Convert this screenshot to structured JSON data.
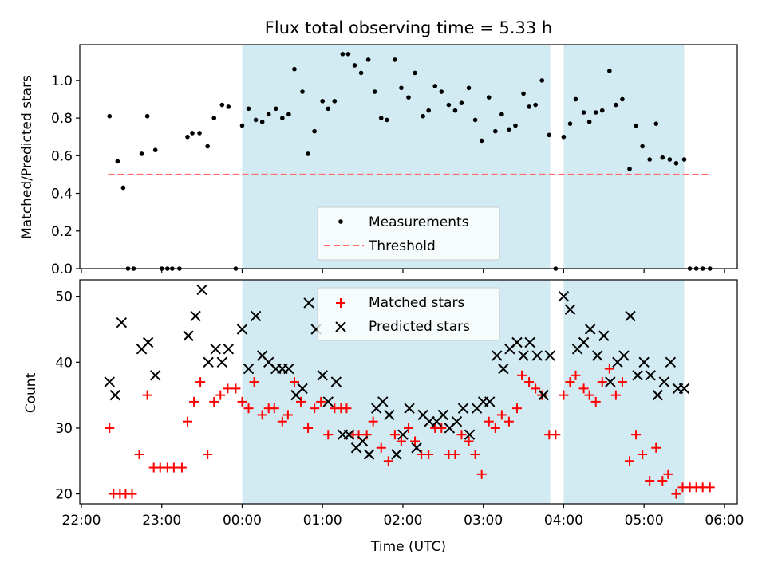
{
  "figure": {
    "title": "Flux total observing time = 5.33 h",
    "xlabel": "Time (UTC)",
    "x_ticks": [
      "22:00",
      "23:00",
      "00:00",
      "01:00",
      "02:00",
      "03:00",
      "04:00",
      "05:00",
      "06:00"
    ]
  },
  "colors": {
    "shade": "#add8e6",
    "measurement": "#000000",
    "threshold": "#ff6b6b",
    "matched": "#ff0000",
    "predicted": "#000000"
  },
  "chart_data": [
    {
      "type": "scatter",
      "ylabel": "Matched/Predicted stars",
      "ylim": [
        0,
        1.19
      ],
      "y_ticks": [
        "0.0",
        "0.2",
        "0.4",
        "0.6",
        "0.8",
        "1.0"
      ],
      "xlim_hours": [
        21.98,
        30.16
      ],
      "shaded_intervals": [
        [
          "00:00",
          "03:50"
        ],
        [
          "04:00",
          "05:30"
        ]
      ],
      "threshold": {
        "name": "Threshold",
        "value": 0.5,
        "x_range": [
          "22:20",
          "05:50"
        ]
      },
      "legend": {
        "placement": "lower center",
        "entries": [
          "Measurements",
          "Threshold"
        ]
      },
      "series": [
        {
          "name": "Measurements",
          "marker": "dot",
          "points": [
            [
              22.35,
              0.81
            ],
            [
              22.45,
              0.57
            ],
            [
              22.52,
              0.43
            ],
            [
              22.58,
              0
            ],
            [
              22.65,
              0
            ],
            [
              22.75,
              0.61
            ],
            [
              22.82,
              0.81
            ],
            [
              22.92,
              0.63
            ],
            [
              23.0,
              0
            ],
            [
              23.07,
              0
            ],
            [
              23.13,
              0
            ],
            [
              23.22,
              0
            ],
            [
              23.32,
              0.7
            ],
            [
              23.38,
              0.72
            ],
            [
              23.47,
              0.72
            ],
            [
              23.57,
              0.65
            ],
            [
              23.65,
              0.8
            ],
            [
              23.75,
              0.87
            ],
            [
              23.83,
              0.86
            ],
            [
              23.92,
              0
            ],
            [
              24.0,
              0.76
            ],
            [
              24.08,
              0.85
            ],
            [
              24.17,
              0.79
            ],
            [
              24.25,
              0.78
            ],
            [
              24.33,
              0.82
            ],
            [
              24.42,
              0.85
            ],
            [
              24.5,
              0.8
            ],
            [
              24.58,
              0.82
            ],
            [
              24.65,
              1.06
            ],
            [
              24.75,
              0.94
            ],
            [
              24.82,
              0.61
            ],
            [
              24.9,
              0.73
            ],
            [
              25.0,
              0.89
            ],
            [
              25.07,
              0.85
            ],
            [
              25.15,
              0.89
            ],
            [
              25.25,
              1.14
            ],
            [
              25.32,
              1.14
            ],
            [
              25.4,
              1.08
            ],
            [
              25.48,
              1.04
            ],
            [
              25.57,
              1.11
            ],
            [
              25.65,
              0.94
            ],
            [
              25.73,
              0.8
            ],
            [
              25.8,
              0.79
            ],
            [
              25.9,
              1.11
            ],
            [
              25.98,
              0.96
            ],
            [
              26.07,
              0.91
            ],
            [
              26.15,
              1.04
            ],
            [
              26.25,
              0.81
            ],
            [
              26.32,
              0.84
            ],
            [
              26.4,
              0.97
            ],
            [
              26.48,
              0.94
            ],
            [
              26.57,
              0.87
            ],
            [
              26.65,
              0.84
            ],
            [
              26.73,
              0.88
            ],
            [
              26.82,
              0.96
            ],
            [
              26.9,
              0.79
            ],
            [
              26.98,
              0.68
            ],
            [
              27.07,
              0.91
            ],
            [
              27.15,
              0.73
            ],
            [
              27.23,
              0.82
            ],
            [
              27.32,
              0.74
            ],
            [
              27.4,
              0.76
            ],
            [
              27.5,
              0.93
            ],
            [
              27.57,
              0.86
            ],
            [
              27.65,
              0.87
            ],
            [
              27.73,
              1.0
            ],
            [
              27.82,
              0.71
            ],
            [
              27.9,
              0
            ],
            [
              28.0,
              0.7
            ],
            [
              28.08,
              0.77
            ],
            [
              28.15,
              0.9
            ],
            [
              28.25,
              0.83
            ],
            [
              28.32,
              0.78
            ],
            [
              28.4,
              0.83
            ],
            [
              28.48,
              0.84
            ],
            [
              28.57,
              1.05
            ],
            [
              28.65,
              0.87
            ],
            [
              28.73,
              0.9
            ],
            [
              28.82,
              0.53
            ],
            [
              28.9,
              0.76
            ],
            [
              28.98,
              0.65
            ],
            [
              29.07,
              0.58
            ],
            [
              29.15,
              0.77
            ],
            [
              29.23,
              0.59
            ],
            [
              29.32,
              0.58
            ],
            [
              29.4,
              0.56
            ],
            [
              29.5,
              0.58
            ],
            [
              29.57,
              0
            ],
            [
              29.65,
              0
            ],
            [
              29.73,
              0
            ],
            [
              29.82,
              0
            ]
          ]
        }
      ]
    },
    {
      "type": "scatter",
      "ylabel": "Count",
      "ylim": [
        18.5,
        52.5
      ],
      "y_ticks": [
        "20",
        "30",
        "40",
        "50"
      ],
      "xlim_hours": [
        21.98,
        30.16
      ],
      "shaded_intervals": [
        [
          "00:00",
          "03:50"
        ],
        [
          "04:00",
          "05:30"
        ]
      ],
      "legend": {
        "placement": "upper center",
        "entries": [
          "Matched stars",
          "Predicted stars"
        ]
      },
      "series": [
        {
          "name": "Matched stars",
          "marker": "plus",
          "points": [
            [
              22.35,
              30
            ],
            [
              22.4,
              20
            ],
            [
              22.48,
              20
            ],
            [
              22.55,
              20
            ],
            [
              22.63,
              20
            ],
            [
              22.72,
              26
            ],
            [
              22.82,
              35
            ],
            [
              22.9,
              24
            ],
            [
              22.98,
              24
            ],
            [
              23.07,
              24
            ],
            [
              23.15,
              24
            ],
            [
              23.25,
              24
            ],
            [
              23.32,
              31
            ],
            [
              23.4,
              34
            ],
            [
              23.48,
              37
            ],
            [
              23.57,
              26
            ],
            [
              23.65,
              34
            ],
            [
              23.73,
              35
            ],
            [
              23.82,
              36
            ],
            [
              23.92,
              36
            ],
            [
              24.0,
              34
            ],
            [
              24.08,
              33
            ],
            [
              24.15,
              37
            ],
            [
              24.25,
              32
            ],
            [
              24.33,
              33
            ],
            [
              24.4,
              33
            ],
            [
              24.5,
              31
            ],
            [
              24.57,
              32
            ],
            [
              24.65,
              37
            ],
            [
              24.73,
              34
            ],
            [
              24.82,
              30
            ],
            [
              24.9,
              33
            ],
            [
              24.98,
              34
            ],
            [
              25.07,
              29
            ],
            [
              25.15,
              33
            ],
            [
              25.23,
              33
            ],
            [
              25.3,
              33
            ],
            [
              25.38,
              29
            ],
            [
              25.45,
              29
            ],
            [
              25.55,
              29
            ],
            [
              25.63,
              31
            ],
            [
              25.73,
              27
            ],
            [
              25.82,
              25
            ],
            [
              25.9,
              29
            ],
            [
              25.98,
              28
            ],
            [
              26.07,
              30
            ],
            [
              26.15,
              28
            ],
            [
              26.23,
              26
            ],
            [
              26.32,
              26
            ],
            [
              26.4,
              30
            ],
            [
              26.48,
              30
            ],
            [
              26.57,
              26
            ],
            [
              26.65,
              26
            ],
            [
              26.73,
              29
            ],
            [
              26.82,
              28
            ],
            [
              26.9,
              26
            ],
            [
              26.98,
              23
            ],
            [
              27.07,
              31
            ],
            [
              27.15,
              30
            ],
            [
              27.23,
              32
            ],
            [
              27.32,
              31
            ],
            [
              27.42,
              33
            ],
            [
              27.48,
              38
            ],
            [
              27.57,
              37
            ],
            [
              27.65,
              36
            ],
            [
              27.73,
              35
            ],
            [
              27.82,
              29
            ],
            [
              27.9,
              29
            ],
            [
              28.0,
              35
            ],
            [
              28.08,
              37
            ],
            [
              28.15,
              38
            ],
            [
              28.25,
              36
            ],
            [
              28.32,
              35
            ],
            [
              28.4,
              34
            ],
            [
              28.48,
              37
            ],
            [
              28.57,
              39
            ],
            [
              28.65,
              35
            ],
            [
              28.73,
              37
            ],
            [
              28.82,
              25
            ],
            [
              28.9,
              29
            ],
            [
              28.98,
              26
            ],
            [
              29.07,
              22
            ],
            [
              29.15,
              27
            ],
            [
              29.23,
              22
            ],
            [
              29.3,
              23
            ],
            [
              29.4,
              20
            ],
            [
              29.48,
              21
            ],
            [
              29.57,
              21
            ],
            [
              29.65,
              21
            ],
            [
              29.73,
              21
            ],
            [
              29.82,
              21
            ]
          ]
        },
        {
          "name": "Predicted stars",
          "marker": "x",
          "points": [
            [
              22.35,
              37
            ],
            [
              22.42,
              35
            ],
            [
              22.5,
              46
            ],
            [
              22.75,
              42
            ],
            [
              22.83,
              43
            ],
            [
              22.92,
              38
            ],
            [
              23.33,
              44
            ],
            [
              23.42,
              47
            ],
            [
              23.5,
              51
            ],
            [
              23.58,
              40
            ],
            [
              23.67,
              42
            ],
            [
              23.75,
              40
            ],
            [
              23.83,
              42
            ],
            [
              24.0,
              45
            ],
            [
              24.08,
              39
            ],
            [
              24.17,
              47
            ],
            [
              24.25,
              41
            ],
            [
              24.33,
              40
            ],
            [
              24.42,
              39
            ],
            [
              24.5,
              39
            ],
            [
              24.58,
              39
            ],
            [
              24.67,
              35
            ],
            [
              24.75,
              36
            ],
            [
              24.83,
              49
            ],
            [
              24.92,
              45
            ],
            [
              25.0,
              38
            ],
            [
              25.07,
              34
            ],
            [
              25.17,
              37
            ],
            [
              25.25,
              29
            ],
            [
              25.33,
              29
            ],
            [
              25.42,
              27
            ],
            [
              25.5,
              28
            ],
            [
              25.58,
              26
            ],
            [
              25.67,
              33
            ],
            [
              25.75,
              34
            ],
            [
              25.83,
              32
            ],
            [
              25.92,
              26
            ],
            [
              26.0,
              29
            ],
            [
              26.08,
              33
            ],
            [
              26.17,
              27
            ],
            [
              26.25,
              32
            ],
            [
              26.33,
              31
            ],
            [
              26.42,
              31
            ],
            [
              26.5,
              32
            ],
            [
              26.58,
              30
            ],
            [
              26.67,
              31
            ],
            [
              26.75,
              33
            ],
            [
              26.83,
              29
            ],
            [
              26.92,
              33
            ],
            [
              27.0,
              34
            ],
            [
              27.08,
              34
            ],
            [
              27.17,
              41
            ],
            [
              27.25,
              39
            ],
            [
              27.33,
              42
            ],
            [
              27.42,
              43
            ],
            [
              27.5,
              41
            ],
            [
              27.58,
              43
            ],
            [
              27.67,
              41
            ],
            [
              27.75,
              35
            ],
            [
              27.83,
              41
            ],
            [
              28.0,
              50
            ],
            [
              28.08,
              48
            ],
            [
              28.17,
              42
            ],
            [
              28.25,
              43
            ],
            [
              28.33,
              45
            ],
            [
              28.42,
              41
            ],
            [
              28.5,
              44
            ],
            [
              28.58,
              37
            ],
            [
              28.67,
              40
            ],
            [
              28.75,
              41
            ],
            [
              28.83,
              47
            ],
            [
              28.92,
              38
            ],
            [
              29.0,
              40
            ],
            [
              29.08,
              38
            ],
            [
              29.17,
              35
            ],
            [
              29.25,
              37
            ],
            [
              29.33,
              40
            ],
            [
              29.42,
              36
            ],
            [
              29.5,
              36
            ]
          ]
        }
      ]
    }
  ]
}
